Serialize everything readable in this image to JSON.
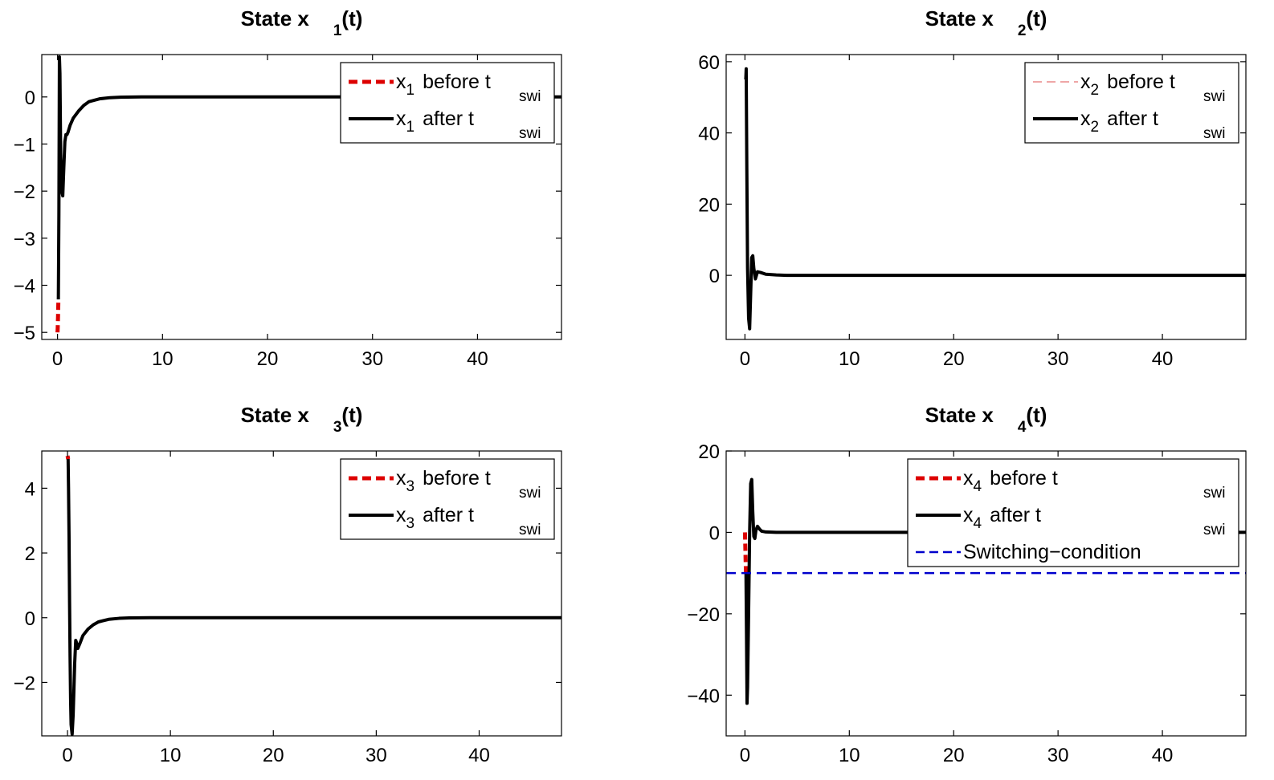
{
  "chart_data": [
    {
      "type": "line",
      "title": "State x 1(t)",
      "title_parts": {
        "prefix": "State x",
        "sub": "1",
        "suffix": "(t)"
      },
      "xlim": [
        -1.5,
        48
      ],
      "ylim": [
        -5.15,
        0.9
      ],
      "xticks": [
        0,
        10,
        20,
        30,
        40
      ],
      "yticks": [
        0,
        -1,
        -2,
        -3,
        -4,
        -5
      ],
      "ytick_labels": [
        "0",
        "−1",
        "−2",
        "−3",
        "−4",
        "−5"
      ],
      "legend": [
        {
          "var": "x",
          "sub": "1",
          "text": "before t",
          "tsub": "swi",
          "style": "red-dashed"
        },
        {
          "var": "x",
          "sub": "1",
          "text": "after t",
          "tsub": "swi",
          "style": "black-solid"
        }
      ],
      "series": [
        {
          "name": "x1 before tswi",
          "color": "#dd0000",
          "dash": "dashed",
          "x": [
            0,
            0.02,
            0.05,
            0.08
          ],
          "y": [
            -5.0,
            -4.9,
            -4.65,
            -4.35
          ]
        },
        {
          "name": "x1 after tswi",
          "color": "#000000",
          "dash": "solid",
          "x": [
            0.08,
            0.13,
            0.18,
            0.23,
            0.3,
            0.4,
            0.5,
            0.6,
            0.7,
            0.8,
            0.9,
            1.0,
            1.2,
            1.5,
            2,
            2.5,
            3,
            4,
            5,
            6,
            8,
            48
          ],
          "y": [
            -4.3,
            -2.5,
            0.85,
            0.5,
            -1.2,
            -2.0,
            -2.1,
            -1.5,
            -0.95,
            -0.8,
            -0.8,
            -0.75,
            -0.6,
            -0.45,
            -0.3,
            -0.18,
            -0.1,
            -0.04,
            -0.015,
            -0.005,
            0,
            0
          ]
        }
      ]
    },
    {
      "type": "line",
      "title": "State x 2(t)",
      "title_parts": {
        "prefix": "State x",
        "sub": "2",
        "suffix": "(t)"
      },
      "xlim": [
        -1.8,
        48
      ],
      "ylim": [
        -18,
        62
      ],
      "xticks": [
        0,
        10,
        20,
        30,
        40
      ],
      "yticks": [
        60,
        40,
        20,
        0
      ],
      "ytick_labels": [
        "60",
        "40",
        "20",
        "0"
      ],
      "legend": [
        {
          "var": "x",
          "sub": "2",
          "text": "before t",
          "tsub": "swi",
          "style": "red-thin-dashed"
        },
        {
          "var": "x",
          "sub": "2",
          "text": "after t",
          "tsub": "swi",
          "style": "black-solid"
        }
      ],
      "series": [
        {
          "name": "x2 after tswi",
          "color": "#000000",
          "dash": "solid",
          "x": [
            0.08,
            0.12,
            0.18,
            0.25,
            0.35,
            0.45,
            0.55,
            0.65,
            0.75,
            0.85,
            1.0,
            1.2,
            1.5,
            2,
            3,
            4,
            6,
            48
          ],
          "y": [
            55,
            58,
            30,
            2,
            -12,
            -15,
            -5,
            5,
            5.5,
            2,
            -1,
            1,
            0.8,
            0.3,
            0.1,
            0,
            0,
            0
          ]
        }
      ]
    },
    {
      "type": "line",
      "title": "State x 3(t)",
      "title_parts": {
        "prefix": "State x",
        "sub": "3",
        "suffix": "(t)"
      },
      "xlim": [
        -2.5,
        48
      ],
      "ylim": [
        -3.65,
        5.15
      ],
      "xticks": [
        0,
        10,
        20,
        30,
        40
      ],
      "yticks": [
        4,
        2,
        0,
        -2
      ],
      "ytick_labels": [
        "4",
        "2",
        "0",
        "−2"
      ],
      "legend": [
        {
          "var": "x",
          "sub": "3",
          "text": "before t",
          "tsub": "swi",
          "style": "red-dashed"
        },
        {
          "var": "x",
          "sub": "3",
          "text": "after t",
          "tsub": "swi",
          "style": "black-solid"
        }
      ],
      "series": [
        {
          "name": "x3 before tswi",
          "color": "#dd0000",
          "dash": "dashed",
          "x": [
            0,
            0.03,
            0.06
          ],
          "y": [
            5.0,
            4.96,
            4.9
          ]
        },
        {
          "name": "x3 after tswi",
          "color": "#000000",
          "dash": "solid",
          "x": [
            0.06,
            0.1,
            0.15,
            0.2,
            0.25,
            0.3,
            0.35,
            0.45,
            0.55,
            0.7,
            0.8,
            0.9,
            1.0,
            1.2,
            1.5,
            2,
            2.5,
            3,
            4,
            5,
            6,
            8,
            48
          ],
          "y": [
            4.9,
            4.0,
            2.5,
            0.5,
            -1.2,
            -2.5,
            -3.3,
            -3.6,
            -3.0,
            -1.4,
            -0.7,
            -0.8,
            -0.95,
            -0.8,
            -0.55,
            -0.35,
            -0.22,
            -0.13,
            -0.05,
            -0.02,
            -0.005,
            0,
            0
          ]
        }
      ]
    },
    {
      "type": "line",
      "title": "State x 4(t)",
      "title_parts": {
        "prefix": "State x",
        "sub": "4",
        "suffix": "(t)"
      },
      "xlim": [
        -1.8,
        48
      ],
      "ylim": [
        -50,
        20
      ],
      "xticks": [
        0,
        10,
        20,
        30,
        40
      ],
      "yticks": [
        20,
        0,
        -20,
        -40
      ],
      "ytick_labels": [
        "20",
        "0",
        "−20",
        "−40"
      ],
      "legend": [
        {
          "var": "x",
          "sub": "4",
          "text": "before t",
          "tsub": "swi",
          "style": "red-dashed"
        },
        {
          "var": "x",
          "sub": "4",
          "text": "after t",
          "tsub": "swi",
          "style": "black-solid"
        },
        {
          "var": "",
          "sub": "",
          "text": "Switching−condition",
          "tsub": "",
          "style": "blue-dashed"
        }
      ],
      "series": [
        {
          "name": "x4 before tswi",
          "color": "#dd0000",
          "dash": "dashed",
          "x": [
            0,
            0.03,
            0.06,
            0.1
          ],
          "y": [
            0,
            -3,
            -6.5,
            -10
          ]
        },
        {
          "name": "x4 after tswi",
          "color": "#000000",
          "dash": "solid",
          "x": [
            0.1,
            0.15,
            0.2,
            0.25,
            0.35,
            0.45,
            0.55,
            0.65,
            0.75,
            0.85,
            0.95,
            1.05,
            1.2,
            1.4,
            1.6,
            2,
            3,
            4,
            6,
            48
          ],
          "y": [
            -10,
            -25,
            -42,
            -38,
            -20,
            0,
            12,
            13,
            5,
            -1,
            -1.5,
            0.5,
            1.5,
            0.8,
            0.3,
            0.1,
            0.02,
            0,
            0,
            0
          ]
        },
        {
          "name": "Switching-condition",
          "color": "#0000cc",
          "dash": "dashed",
          "x": [
            -1.8,
            48
          ],
          "y": [
            -10,
            -10
          ]
        }
      ]
    }
  ]
}
